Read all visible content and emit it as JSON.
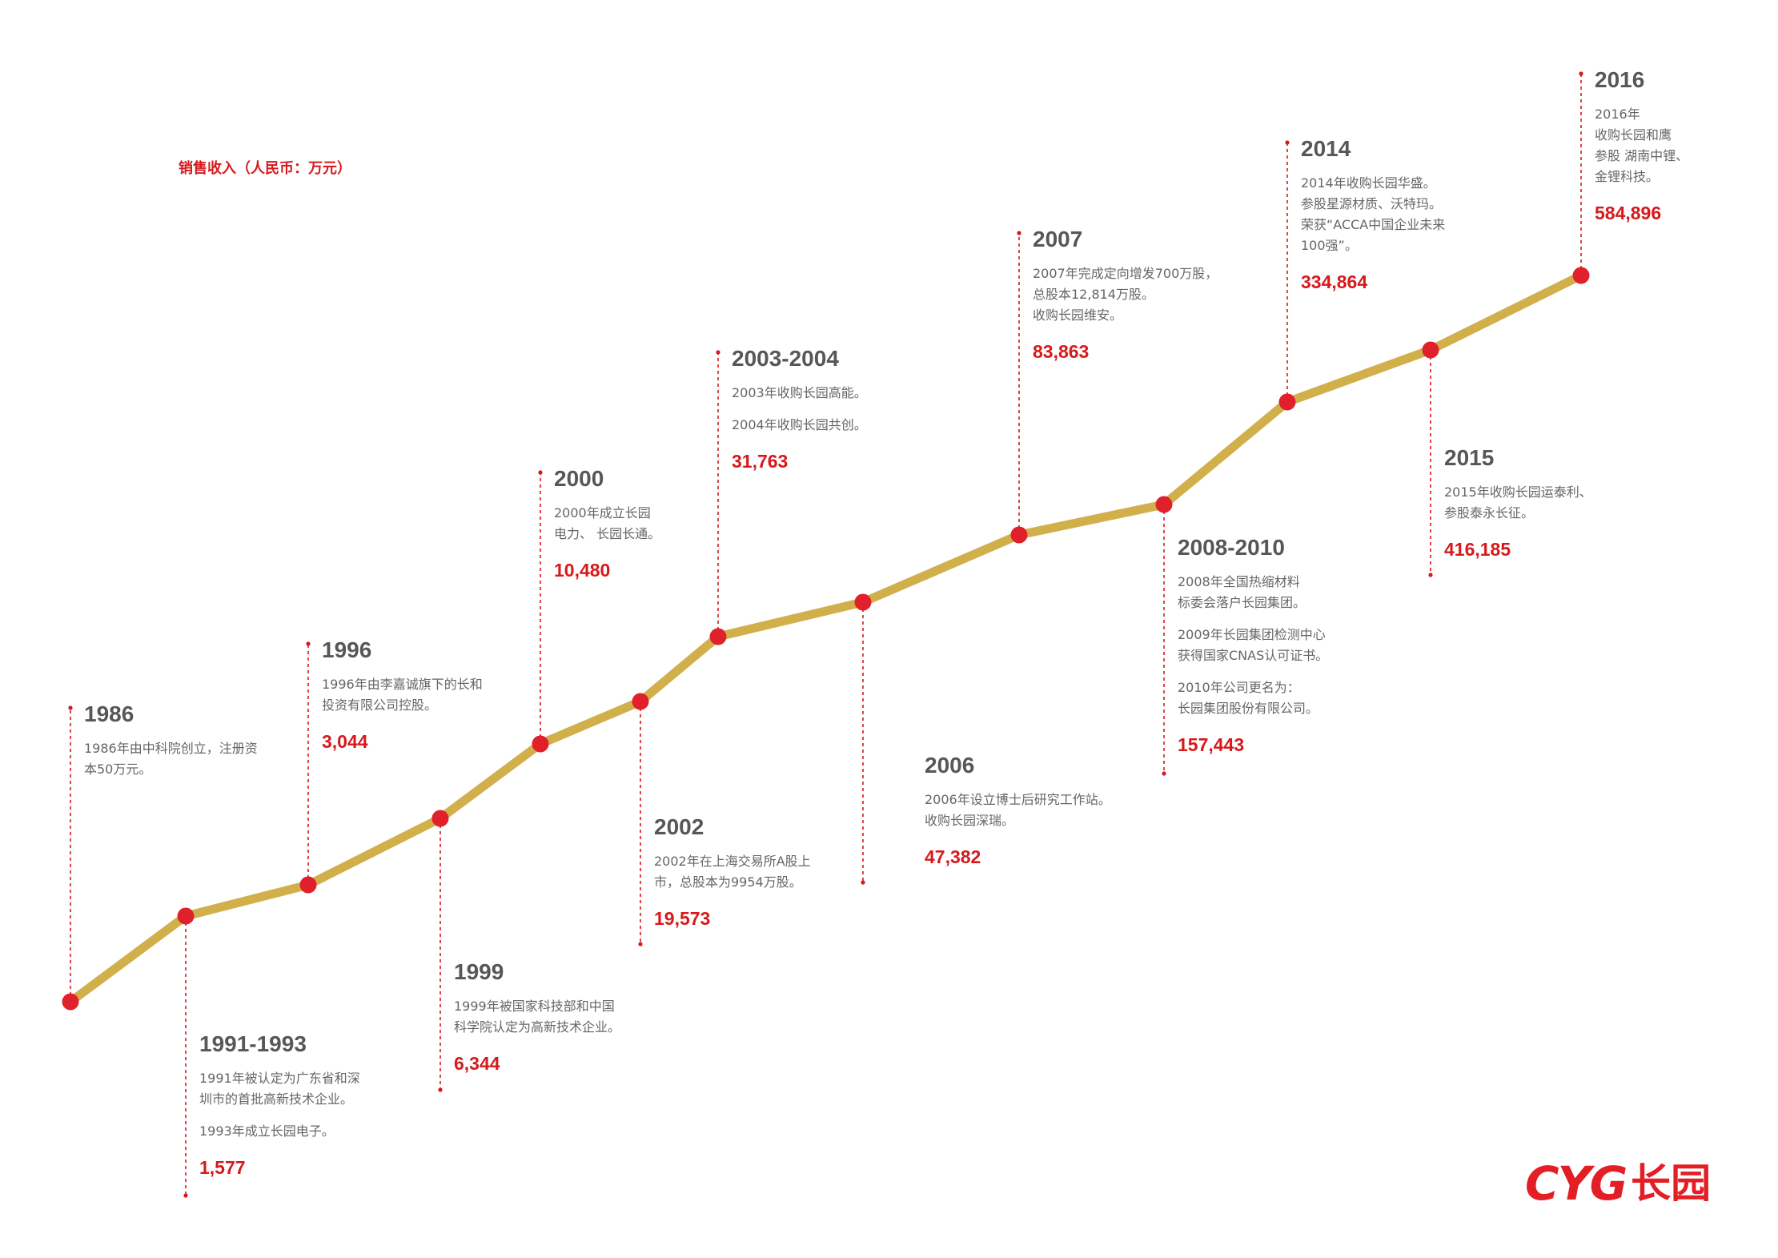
{
  "header": {
    "unit_title": "销售收入（人民币：万元）"
  },
  "brand": {
    "logo_latin": "CYG",
    "logo_cn": "长园"
  },
  "colors": {
    "line": "#d1b04c",
    "point": "#e0202a",
    "accent": "#d7191c",
    "year_text": "#575757",
    "body_text": "#666666"
  },
  "chart_data": {
    "type": "line",
    "title": "销售收入（人民币：万元）",
    "x": [
      "1986",
      "1991-1993",
      "1996",
      "1999",
      "2000",
      "2002",
      "2003-2004",
      "2006",
      "2007",
      "2008-2010",
      "2014",
      "2015",
      "2016"
    ],
    "values_text": [
      "",
      "1,577",
      "3,044",
      "6,344",
      "10,480",
      "19,573",
      "31,763",
      "47,382",
      "83,863",
      "157,443",
      "334,864",
      "416,185",
      "584,896"
    ],
    "series": [
      {
        "values": [
          null,
          1577,
          3044,
          6344,
          10480,
          19573,
          31763,
          47382,
          83863,
          157443,
          334864,
          416185,
          584896
        ]
      }
    ],
    "grid": false,
    "legend": "none"
  },
  "milestones": [
    {
      "year": "1986",
      "events": [
        "1986年由中科院创立，注册资\n本50万元。"
      ],
      "value": ""
    },
    {
      "year": "1991-1993",
      "events": [
        "1991年被认定为广东省和深\n圳市的首批高新技术企业。",
        "1993年成立长园电子。"
      ],
      "value": "1,577"
    },
    {
      "year": "1996",
      "events": [
        "1996年由李嘉诚旗下的长和\n投资有限公司控股。"
      ],
      "value": "3,044"
    },
    {
      "year": "1999",
      "events": [
        "1999年被国家科技部和中国\n科学院认定为高新技术企业。"
      ],
      "value": "6,344"
    },
    {
      "year": "2000",
      "events": [
        "2000年成立长园\n电力、 长园长通。"
      ],
      "value": "10,480"
    },
    {
      "year": "2002",
      "events": [
        "2002年在上海交易所A股上\n市，总股本为9954万股。"
      ],
      "value": "19,573"
    },
    {
      "year": "2003-2004",
      "events": [
        "2003年收购长园高能。",
        "2004年收购长园共创。"
      ],
      "value": "31,763"
    },
    {
      "year": "2006",
      "events": [
        "2006年设立博士后研究工作站。\n收购长园深瑞。"
      ],
      "value": "47,382"
    },
    {
      "year": "2007",
      "events": [
        "2007年完成定向增发700万股，\n总股本12,814万股。\n收购长园维安。"
      ],
      "value": "83,863"
    },
    {
      "year": "2008-2010",
      "events": [
        "2008年全国热缩材料\n标委会落户长园集团。",
        "2009年长园集团检测中心\n获得国家CNAS认可证书。",
        "2010年公司更名为：\n长园集团股份有限公司。"
      ],
      "value": "157,443"
    },
    {
      "year": "2014",
      "events": [
        "2014年收购长园华盛。\n参股星源材质、沃特玛。\n荣获“ACCA中国企业未来\n100强”。"
      ],
      "value": "334,864"
    },
    {
      "year": "2015",
      "events": [
        "2015年收购长园运泰利、\n参股泰永长征。"
      ],
      "value": "416,185"
    },
    {
      "year": "2016",
      "events": [
        "2016年\n收购长园和鹰\n参股 湖南中锂、\n金锂科技。"
      ],
      "value": "584,896"
    }
  ]
}
